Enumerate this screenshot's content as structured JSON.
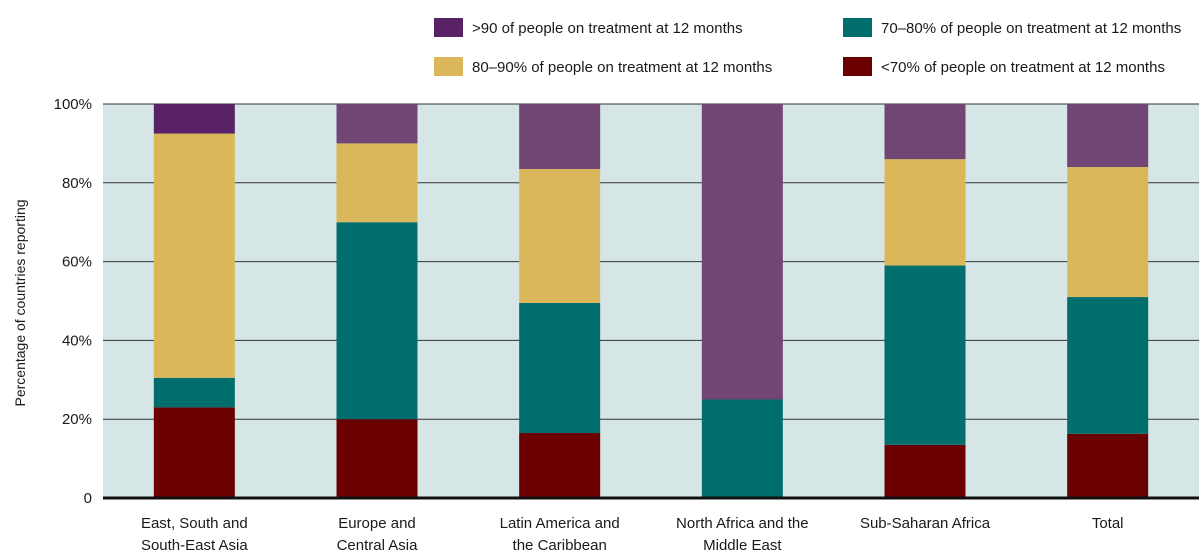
{
  "chart_data": {
    "type": "bar",
    "stacked": true,
    "ylabel": "Percentage of countries reporting",
    "ylim": [
      0,
      100
    ],
    "yticks": [
      0,
      20,
      40,
      60,
      80,
      100
    ],
    "ytick_labels": [
      "0",
      "20%",
      "40%",
      "60%",
      "80%",
      "100%"
    ],
    "grid": true,
    "legend_position": "top-right",
    "categories": [
      [
        "East, South and",
        "South-East Asia"
      ],
      [
        "Europe and",
        "Central Asia"
      ],
      [
        "Latin America and",
        "the Caribbean"
      ],
      [
        "North Africa and the",
        "Middle East"
      ],
      [
        "Sub-Saharan Africa"
      ],
      [
        "Total"
      ]
    ],
    "series": [
      {
        "name": "<70% of people on treatment at 12 months",
        "color": "#6b0000",
        "values": [
          23,
          20,
          16.5,
          0,
          13.5,
          16.3
        ]
      },
      {
        "name": "70–80% of people on treatment at 12 months",
        "color": "#006e6c",
        "values": [
          7.5,
          50,
          33,
          25,
          45.5,
          34.7
        ]
      },
      {
        "name": "80–90% of people on treatment at 12 months",
        "color": "#dab75a",
        "values": [
          62,
          20,
          34,
          0,
          27,
          33
        ]
      },
      {
        "name": ">90 of people on treatment at 12 months",
        "color": "#714574",
        "values": [
          7.5,
          10,
          16.5,
          75,
          14,
          16
        ]
      }
    ],
    "series_colors_alt": {
      "top_segment_first_bar": "#5a2266"
    }
  }
}
